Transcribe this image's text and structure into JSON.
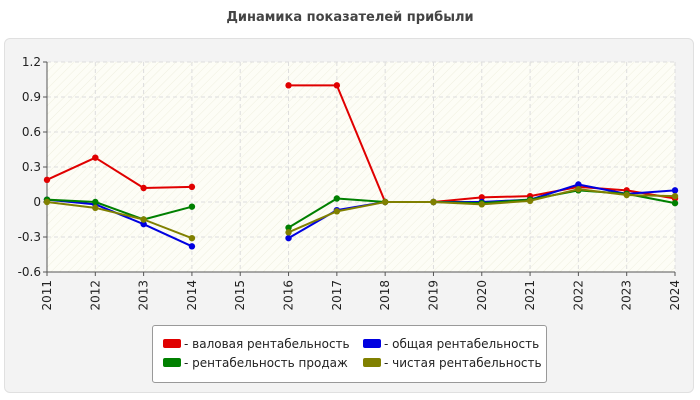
{
  "title": "Динамика показателей прибыли",
  "legend": {
    "gross": "- валовая рентабельность",
    "total": "- общая рентабельность",
    "sales": "- рентабельность продаж",
    "net": "- чистая рентабельность"
  },
  "chart_data": {
    "type": "line",
    "title": "Динамика показателей прибыли",
    "xlabel": "",
    "ylabel": "",
    "categories": [
      "2011",
      "2012",
      "2013",
      "2014",
      "2015",
      "2016",
      "2017",
      "2018",
      "2019",
      "2020",
      "2021",
      "2022",
      "2023",
      "2024"
    ],
    "ylim": [
      -0.6,
      1.2
    ],
    "yticks": [
      1.2,
      0.9,
      0.6,
      0.3,
      0,
      -0.3,
      -0.6
    ],
    "ytick_labels": [
      "1.2",
      "0.9",
      "0.6",
      "0.3",
      "0",
      "-0.3",
      "-0.6"
    ],
    "grid": true,
    "legend_position": "bottom",
    "series": [
      {
        "name": "- валовая рентабельность",
        "color": "#e00000",
        "values": [
          0.19,
          0.38,
          0.12,
          0.13,
          null,
          1.0,
          1.0,
          0.0,
          0.0,
          0.04,
          0.05,
          0.13,
          0.1,
          0.03
        ]
      },
      {
        "name": "- общая рентабельность",
        "color": "#0000e0",
        "values": [
          0.02,
          -0.02,
          -0.19,
          -0.38,
          null,
          -0.31,
          -0.07,
          0.0,
          0.0,
          0.0,
          0.02,
          0.15,
          0.07,
          0.1
        ]
      },
      {
        "name": "- рентабельность продаж",
        "color": "#008000",
        "values": [
          0.02,
          0.0,
          -0.15,
          -0.04,
          null,
          -0.22,
          0.03,
          0.0,
          0.0,
          -0.01,
          0.02,
          0.1,
          0.07,
          -0.01
        ]
      },
      {
        "name": "- чистая рентабельность",
        "color": "#808000",
        "values": [
          0.0,
          -0.05,
          -0.15,
          -0.31,
          null,
          -0.26,
          -0.08,
          0.0,
          0.0,
          -0.02,
          0.01,
          0.11,
          0.06,
          0.05
        ]
      }
    ]
  }
}
